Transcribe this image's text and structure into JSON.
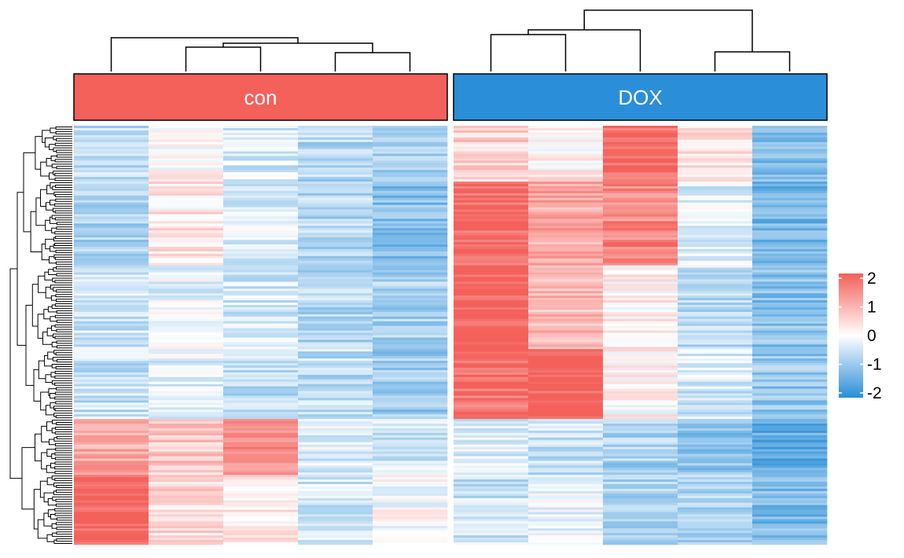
{
  "colors": {
    "high": "#F4605A",
    "mid": "#FFFFFF",
    "low": "#2A8ED8"
  },
  "chart_data": {
    "type": "heatmap",
    "groups": [
      {
        "label": "con",
        "color": "#F4605A",
        "columns": 5
      },
      {
        "label": "DOX",
        "color": "#2A8ED8",
        "columns": 5
      }
    ],
    "row_count": 180,
    "row_dendrogram": true,
    "column_dendrogram": true,
    "color_scale": {
      "min": -2,
      "max": 2,
      "ticks": [
        "2",
        "1",
        "0",
        "-1",
        "-2"
      ]
    },
    "row_blocks": [
      {
        "rows": [
          0,
          24
        ],
        "values": [
          -0.6,
          0.1,
          -0.4,
          -0.7,
          -0.9,
          0.6,
          0.2,
          1.8,
          0.4,
          -1.2
        ]
      },
      {
        "rows": [
          24,
          60
        ],
        "values": [
          -0.8,
          0.3,
          -0.3,
          -0.7,
          -1.1,
          1.9,
          1.1,
          1.5,
          -0.3,
          -1.3
        ]
      },
      {
        "rows": [
          60,
          96
        ],
        "values": [
          -0.5,
          -0.2,
          -0.4,
          -0.7,
          -0.8,
          2.0,
          0.9,
          0.2,
          -0.6,
          -1.1
        ]
      },
      {
        "rows": [
          96,
          126
        ],
        "values": [
          -0.5,
          -0.3,
          -0.6,
          -0.6,
          -0.9,
          1.8,
          2.0,
          0.1,
          -0.4,
          -1.0
        ]
      },
      {
        "rows": [
          126,
          150
        ],
        "values": [
          1.1,
          0.7,
          1.4,
          -0.3,
          -0.4,
          -0.3,
          -0.5,
          -0.8,
          -1.1,
          -1.5
        ]
      },
      {
        "rows": [
          150,
          180
        ],
        "values": [
          1.9,
          0.5,
          0.3,
          -0.4,
          0.0,
          -0.5,
          -0.2,
          -0.7,
          -0.8,
          -1.2
        ]
      }
    ]
  }
}
